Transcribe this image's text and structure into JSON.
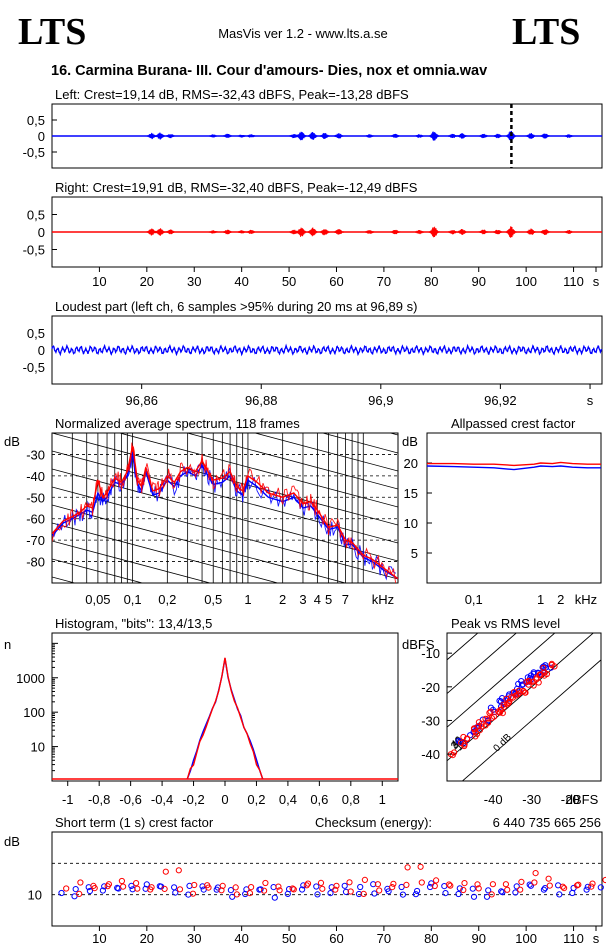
{
  "header": {
    "logo_left": "LTS",
    "logo_right": "LTS",
    "app_title": "MasVis ver 1.2 - www.lts.a.se",
    "file_title": "16. Carmina Burana- III. Cour d'amours- Dies, nox et omnia.wav"
  },
  "colors": {
    "left": "#0000ff",
    "right": "#ff0000",
    "axis": "#000000"
  },
  "chart_data": [
    {
      "id": "left",
      "type": "line",
      "title": "Left: Crest=19,14 dB, RMS=-32,43 dBFS, Peak=-13,28 dBFS",
      "ylim": [
        -1,
        1
      ],
      "xlim": [
        0,
        116
      ],
      "yticks": [
        "0,5",
        "0",
        "-0,5"
      ],
      "marker_x": 96.89,
      "bursts": [
        [
          21,
          0.09
        ],
        [
          22.8,
          0.1
        ],
        [
          25,
          0.06
        ],
        [
          34,
          0.04
        ],
        [
          37,
          0.06
        ],
        [
          40,
          0.04
        ],
        [
          42,
          0.05
        ],
        [
          51,
          0.06
        ],
        [
          52.6,
          0.14
        ],
        [
          55,
          0.12
        ],
        [
          57.5,
          0.09
        ],
        [
          60.5,
          0.08
        ],
        [
          67,
          0.05
        ],
        [
          72.4,
          0.06
        ],
        [
          77.5,
          0.05
        ],
        [
          80.6,
          0.15
        ],
        [
          84.5,
          0.06
        ],
        [
          86.5,
          0.08
        ],
        [
          91,
          0.06
        ],
        [
          94,
          0.06
        ],
        [
          96.8,
          0.16
        ],
        [
          101,
          0.09
        ],
        [
          104,
          0.08
        ],
        [
          109,
          0.05
        ]
      ]
    },
    {
      "id": "right",
      "type": "line",
      "title": "Right: Crest=19,91 dB, RMS=-32,40 dBFS, Peak=-12,49 dBFS",
      "ylim": [
        -1,
        1
      ],
      "xlim": [
        0,
        116
      ],
      "yticks": [
        "0,5",
        "0",
        "-0,5"
      ],
      "xticks": [
        "10",
        "20",
        "30",
        "40",
        "50",
        "60",
        "70",
        "80",
        "90",
        "100",
        "110",
        "s"
      ],
      "bursts": [
        [
          21,
          0.09
        ],
        [
          22.8,
          0.1
        ],
        [
          25,
          0.06
        ],
        [
          34,
          0.04
        ],
        [
          37,
          0.06
        ],
        [
          40,
          0.04
        ],
        [
          42,
          0.05
        ],
        [
          51,
          0.06
        ],
        [
          52.6,
          0.14
        ],
        [
          55,
          0.12
        ],
        [
          57.5,
          0.09
        ],
        [
          60.5,
          0.08
        ],
        [
          67,
          0.05
        ],
        [
          72.4,
          0.06
        ],
        [
          77.5,
          0.05
        ],
        [
          80.6,
          0.15
        ],
        [
          84.5,
          0.06
        ],
        [
          86.5,
          0.08
        ],
        [
          91,
          0.06
        ],
        [
          94,
          0.06
        ],
        [
          96.8,
          0.16
        ],
        [
          101,
          0.09
        ],
        [
          104,
          0.08
        ],
        [
          109,
          0.05
        ]
      ]
    },
    {
      "id": "loudest",
      "type": "line",
      "title": "Loudest part (left  ch, 6 samples >95% during 20 ms at 96,89 s)",
      "ylim": [
        -1,
        1
      ],
      "yticks": [
        "0,5",
        "0",
        "-0,5"
      ],
      "xlim": [
        96.845,
        96.937
      ],
      "xticks": [
        "96,86",
        "96,88",
        "96,9",
        "96,92",
        "s"
      ],
      "xtick_values": [
        96.86,
        96.88,
        96.9,
        96.92,
        96.935
      ]
    },
    {
      "id": "spectrum",
      "type": "line",
      "title": "Normalized average spectrum, 118 frames",
      "ylabel": "dB",
      "ylim": [
        -90,
        -20
      ],
      "yticks": [
        "-30",
        "-40",
        "-50",
        "-60",
        "-70",
        "-80"
      ],
      "ytick_values": [
        -30,
        -40,
        -50,
        -60,
        -70,
        -80
      ],
      "xticks": [
        "0,05",
        "0,1",
        "0,2",
        "0,5",
        "1",
        "2",
        "3",
        "4",
        "5",
        "7",
        "kHz"
      ],
      "xtick_values": [
        0.05,
        0.1,
        0.2,
        0.5,
        1,
        2,
        3,
        4,
        5,
        7,
        12
      ],
      "xlim_khz": [
        0.02,
        20
      ],
      "series": [
        {
          "name": "",
          "color": "#0000ff",
          "x": [
            0.02,
            0.025,
            0.03,
            0.035,
            0.04,
            0.045,
            0.05,
            0.055,
            0.06,
            0.07,
            0.08,
            0.09,
            0.1,
            0.11,
            0.12,
            0.13,
            0.15,
            0.17,
            0.2,
            0.23,
            0.26,
            0.3,
            0.35,
            0.4,
            0.45,
            0.5,
            0.6,
            0.7,
            0.8,
            0.9,
            1,
            1.2,
            1.5,
            2,
            2.5,
            3,
            3.5,
            4,
            5,
            6,
            7,
            8,
            10,
            12,
            15,
            20
          ],
          "y": [
            -68,
            -62,
            -60,
            -58,
            -56,
            -57,
            -48,
            -52,
            -50,
            -43,
            -44,
            -40,
            -30,
            -44,
            -47,
            -38,
            -49,
            -48,
            -42,
            -45,
            -40,
            -38,
            -40,
            -35,
            -40,
            -44,
            -43,
            -40,
            -47,
            -49,
            -42,
            -45,
            -50,
            -52,
            -50,
            -55,
            -54,
            -58,
            -65,
            -64,
            -72,
            -72,
            -78,
            -80,
            -84,
            -88
          ]
        },
        {
          "name": "",
          "color": "#ff0000",
          "x": [
            0.02,
            0.025,
            0.03,
            0.035,
            0.04,
            0.045,
            0.05,
            0.055,
            0.06,
            0.07,
            0.08,
            0.09,
            0.1,
            0.11,
            0.12,
            0.13,
            0.15,
            0.17,
            0.2,
            0.23,
            0.26,
            0.3,
            0.35,
            0.4,
            0.45,
            0.5,
            0.6,
            0.7,
            0.8,
            0.9,
            1,
            1.2,
            1.5,
            2,
            2.5,
            3,
            3.5,
            4,
            5,
            6,
            7,
            8,
            10,
            12,
            15,
            20
          ],
          "y": [
            -67,
            -61,
            -59,
            -57,
            -54,
            -55,
            -42,
            -50,
            -48,
            -41,
            -43,
            -38,
            -26,
            -42,
            -45,
            -36,
            -47,
            -46,
            -40,
            -43,
            -38,
            -36,
            -38,
            -33,
            -38,
            -42,
            -41,
            -38,
            -45,
            -47,
            -40,
            -43,
            -48,
            -50,
            -48,
            -53,
            -52,
            -56,
            -64,
            -63,
            -70,
            -71,
            -77,
            -79,
            -83,
            -88
          ]
        }
      ]
    },
    {
      "id": "crest_allpass",
      "type": "line",
      "title": "Allpassed crest factor",
      "ylabel": "dB",
      "ylim": [
        0,
        25
      ],
      "yticks": [
        "20",
        "15",
        "10",
        "5"
      ],
      "ytick_values": [
        20,
        15,
        10,
        5
      ],
      "xticks": [
        "0,1",
        "1",
        "2",
        "kHz"
      ],
      "xtick_values": [
        0.1,
        1,
        2,
        5
      ],
      "xlim_khz": [
        0.02,
        8
      ],
      "series": [
        {
          "name": "",
          "color": "#0000ff",
          "x": [
            0.02,
            0.05,
            0.1,
            0.2,
            0.4,
            0.8,
            1,
            1.5,
            2,
            3,
            5,
            8
          ],
          "y": [
            19.5,
            19.4,
            19.3,
            19.2,
            18.9,
            19.3,
            19.5,
            19.4,
            19.5,
            19.3,
            19.2,
            19.2
          ]
        },
        {
          "name": "",
          "color": "#ff0000",
          "x": [
            0.02,
            0.05,
            0.1,
            0.2,
            0.4,
            0.8,
            1,
            1.5,
            2,
            3,
            5,
            8
          ],
          "y": [
            19.9,
            19.9,
            19.8,
            19.8,
            19.6,
            19.8,
            20,
            19.9,
            20.1,
            19.9,
            19.8,
            19.8
          ]
        }
      ]
    },
    {
      "id": "histogram",
      "type": "line",
      "title": "Histogram, \"bits\": 13,4/13,5",
      "ylabel": "n",
      "yticks": [
        "1000",
        "100",
        "10"
      ],
      "ytick_values": [
        1000,
        100,
        10
      ],
      "ylim_log": [
        1,
        20000
      ],
      "xlim": [
        -1.1,
        1.1
      ],
      "xticks": [
        "-1",
        "-0,8",
        "-0,6",
        "-0,4",
        "-0,2",
        "0",
        "0,2",
        "0,4",
        "0,6",
        "0,8",
        "1"
      ],
      "xtick_values": [
        -1,
        -0.8,
        -0.6,
        -0.4,
        -0.2,
        0,
        0.2,
        0.4,
        0.6,
        0.8,
        1
      ],
      "series": [
        {
          "name": "",
          "color": "#0000ff",
          "x": [
            -0.24,
            -0.22,
            -0.2,
            -0.18,
            -0.16,
            -0.14,
            -0.12,
            -0.1,
            -0.08,
            -0.06,
            -0.04,
            -0.02,
            0,
            0.02,
            0.04,
            0.06,
            0.08,
            0.1,
            0.12,
            0.14,
            0.16,
            0.18,
            0.2,
            0.22,
            0.24
          ],
          "y": [
            1,
            2,
            4,
            8,
            14,
            25,
            40,
            70,
            120,
            220,
            450,
            1100,
            3800,
            1100,
            450,
            220,
            120,
            70,
            40,
            25,
            14,
            8,
            4,
            2,
            1
          ]
        },
        {
          "name": "",
          "color": "#ff0000",
          "x": [
            -0.24,
            -0.22,
            -0.2,
            -0.18,
            -0.16,
            -0.14,
            -0.12,
            -0.1,
            -0.08,
            -0.06,
            -0.04,
            -0.02,
            0,
            0.02,
            0.04,
            0.06,
            0.08,
            0.1,
            0.12,
            0.14,
            0.16,
            0.18,
            0.2,
            0.22,
            0.24
          ],
          "y": [
            1,
            2,
            3,
            7,
            13,
            23,
            38,
            66,
            115,
            210,
            430,
            1050,
            3700,
            1050,
            430,
            210,
            115,
            66,
            38,
            23,
            13,
            7,
            3,
            2,
            1
          ]
        }
      ]
    },
    {
      "id": "peak_rms",
      "type": "scatter",
      "title": "Peak vs RMS level",
      "ylabel": "dBFS",
      "xlabel": "dBFS",
      "xlim": [
        -52,
        -12
      ],
      "ylim": [
        -48,
        -4
      ],
      "xticks": [
        "-40",
        "-30",
        "-20"
      ],
      "xtick_values": [
        -40,
        -30,
        -20
      ],
      "yticks": [
        "-10",
        "-20",
        "-30",
        "-40"
      ],
      "ytick_values": [
        -10,
        -20,
        -30,
        -40
      ],
      "diagonal_labels": [
        "40",
        "30",
        "20",
        "10",
        "0 dB"
      ],
      "diagonal_offsets": [
        40,
        30,
        20,
        10,
        0
      ],
      "series": [
        {
          "name": "",
          "color": "#0000ff",
          "x": [
            -48,
            -46,
            -44,
            -42,
            -40,
            -38,
            -37,
            -35,
            -34,
            -33,
            -32,
            -31,
            -30,
            -29,
            -28,
            -27,
            -26
          ],
          "y": [
            -36,
            -34,
            -32,
            -30,
            -27,
            -25,
            -24,
            -22,
            -21,
            -20,
            -19,
            -18,
            -17,
            -16,
            -16,
            -15,
            -14
          ]
        },
        {
          "name": "",
          "color": "#ff0000",
          "x": [
            -50,
            -48,
            -47,
            -45,
            -44,
            -43,
            -42,
            -41,
            -40,
            -39,
            -38,
            -37,
            -36,
            -35,
            -34,
            -33,
            -32,
            -31,
            -30,
            -29,
            -28,
            -27,
            -26,
            -25
          ],
          "y": [
            -40,
            -37,
            -35,
            -34,
            -33,
            -31,
            -31,
            -29,
            -28,
            -27,
            -27,
            -26,
            -24,
            -24,
            -22,
            -22,
            -21,
            -19,
            -19,
            -18,
            -17,
            -16,
            -15,
            -14
          ]
        }
      ]
    },
    {
      "id": "short_crest",
      "type": "scatter",
      "title": "Short term (1 s) crest factor",
      "checksum_label": "Checksum (energy):",
      "checksum_value": "6 440 735 665 256",
      "ylabel": "dB",
      "yticks": [
        "10"
      ],
      "ytick_values": [
        10
      ],
      "ylim": [
        0,
        30
      ],
      "xlim": [
        0,
        116
      ],
      "xticks": [
        "10",
        "20",
        "30",
        "40",
        "50",
        "60",
        "70",
        "80",
        "90",
        "100",
        "110",
        "s"
      ],
      "series": [
        {
          "name": "",
          "color": "#0000ff",
          "x": [
            2,
            5,
            8,
            11,
            14,
            17,
            20,
            23,
            26,
            29,
            32,
            35,
            38,
            41,
            44,
            47,
            50,
            53,
            56,
            59,
            62,
            65,
            68,
            71,
            74,
            77,
            80,
            83,
            86,
            89,
            92,
            95,
            98,
            101,
            104,
            107,
            110,
            113
          ],
          "y": [
            10,
            12,
            11,
            13,
            12,
            11,
            13,
            12,
            10,
            13,
            11,
            12,
            10,
            11,
            12,
            10,
            11,
            12,
            11,
            12,
            10,
            13,
            11,
            12,
            11,
            12,
            13,
            11,
            12,
            10,
            12,
            11,
            13,
            12,
            12,
            11,
            12,
            13
          ]
        },
        {
          "name": "",
          "color": "#ff0000",
          "x": [
            3,
            6,
            9,
            12,
            15,
            18,
            21,
            24,
            27,
            30,
            33,
            36,
            39,
            42,
            45,
            48,
            51,
            54,
            57,
            60,
            63,
            66,
            69,
            72,
            75,
            78,
            81,
            84,
            87,
            90,
            93,
            96,
            99,
            102,
            105,
            108,
            111,
            114
          ],
          "y": [
            11,
            13,
            12,
            14,
            13,
            12,
            12,
            17,
            11,
            14,
            12,
            13,
            11,
            12,
            13,
            11,
            12,
            13,
            12,
            13,
            11,
            14,
            12,
            13,
            19,
            13,
            14,
            12,
            13,
            11,
            13,
            12,
            14,
            16,
            13,
            12,
            13,
            14
          ]
        }
      ]
    }
  ]
}
